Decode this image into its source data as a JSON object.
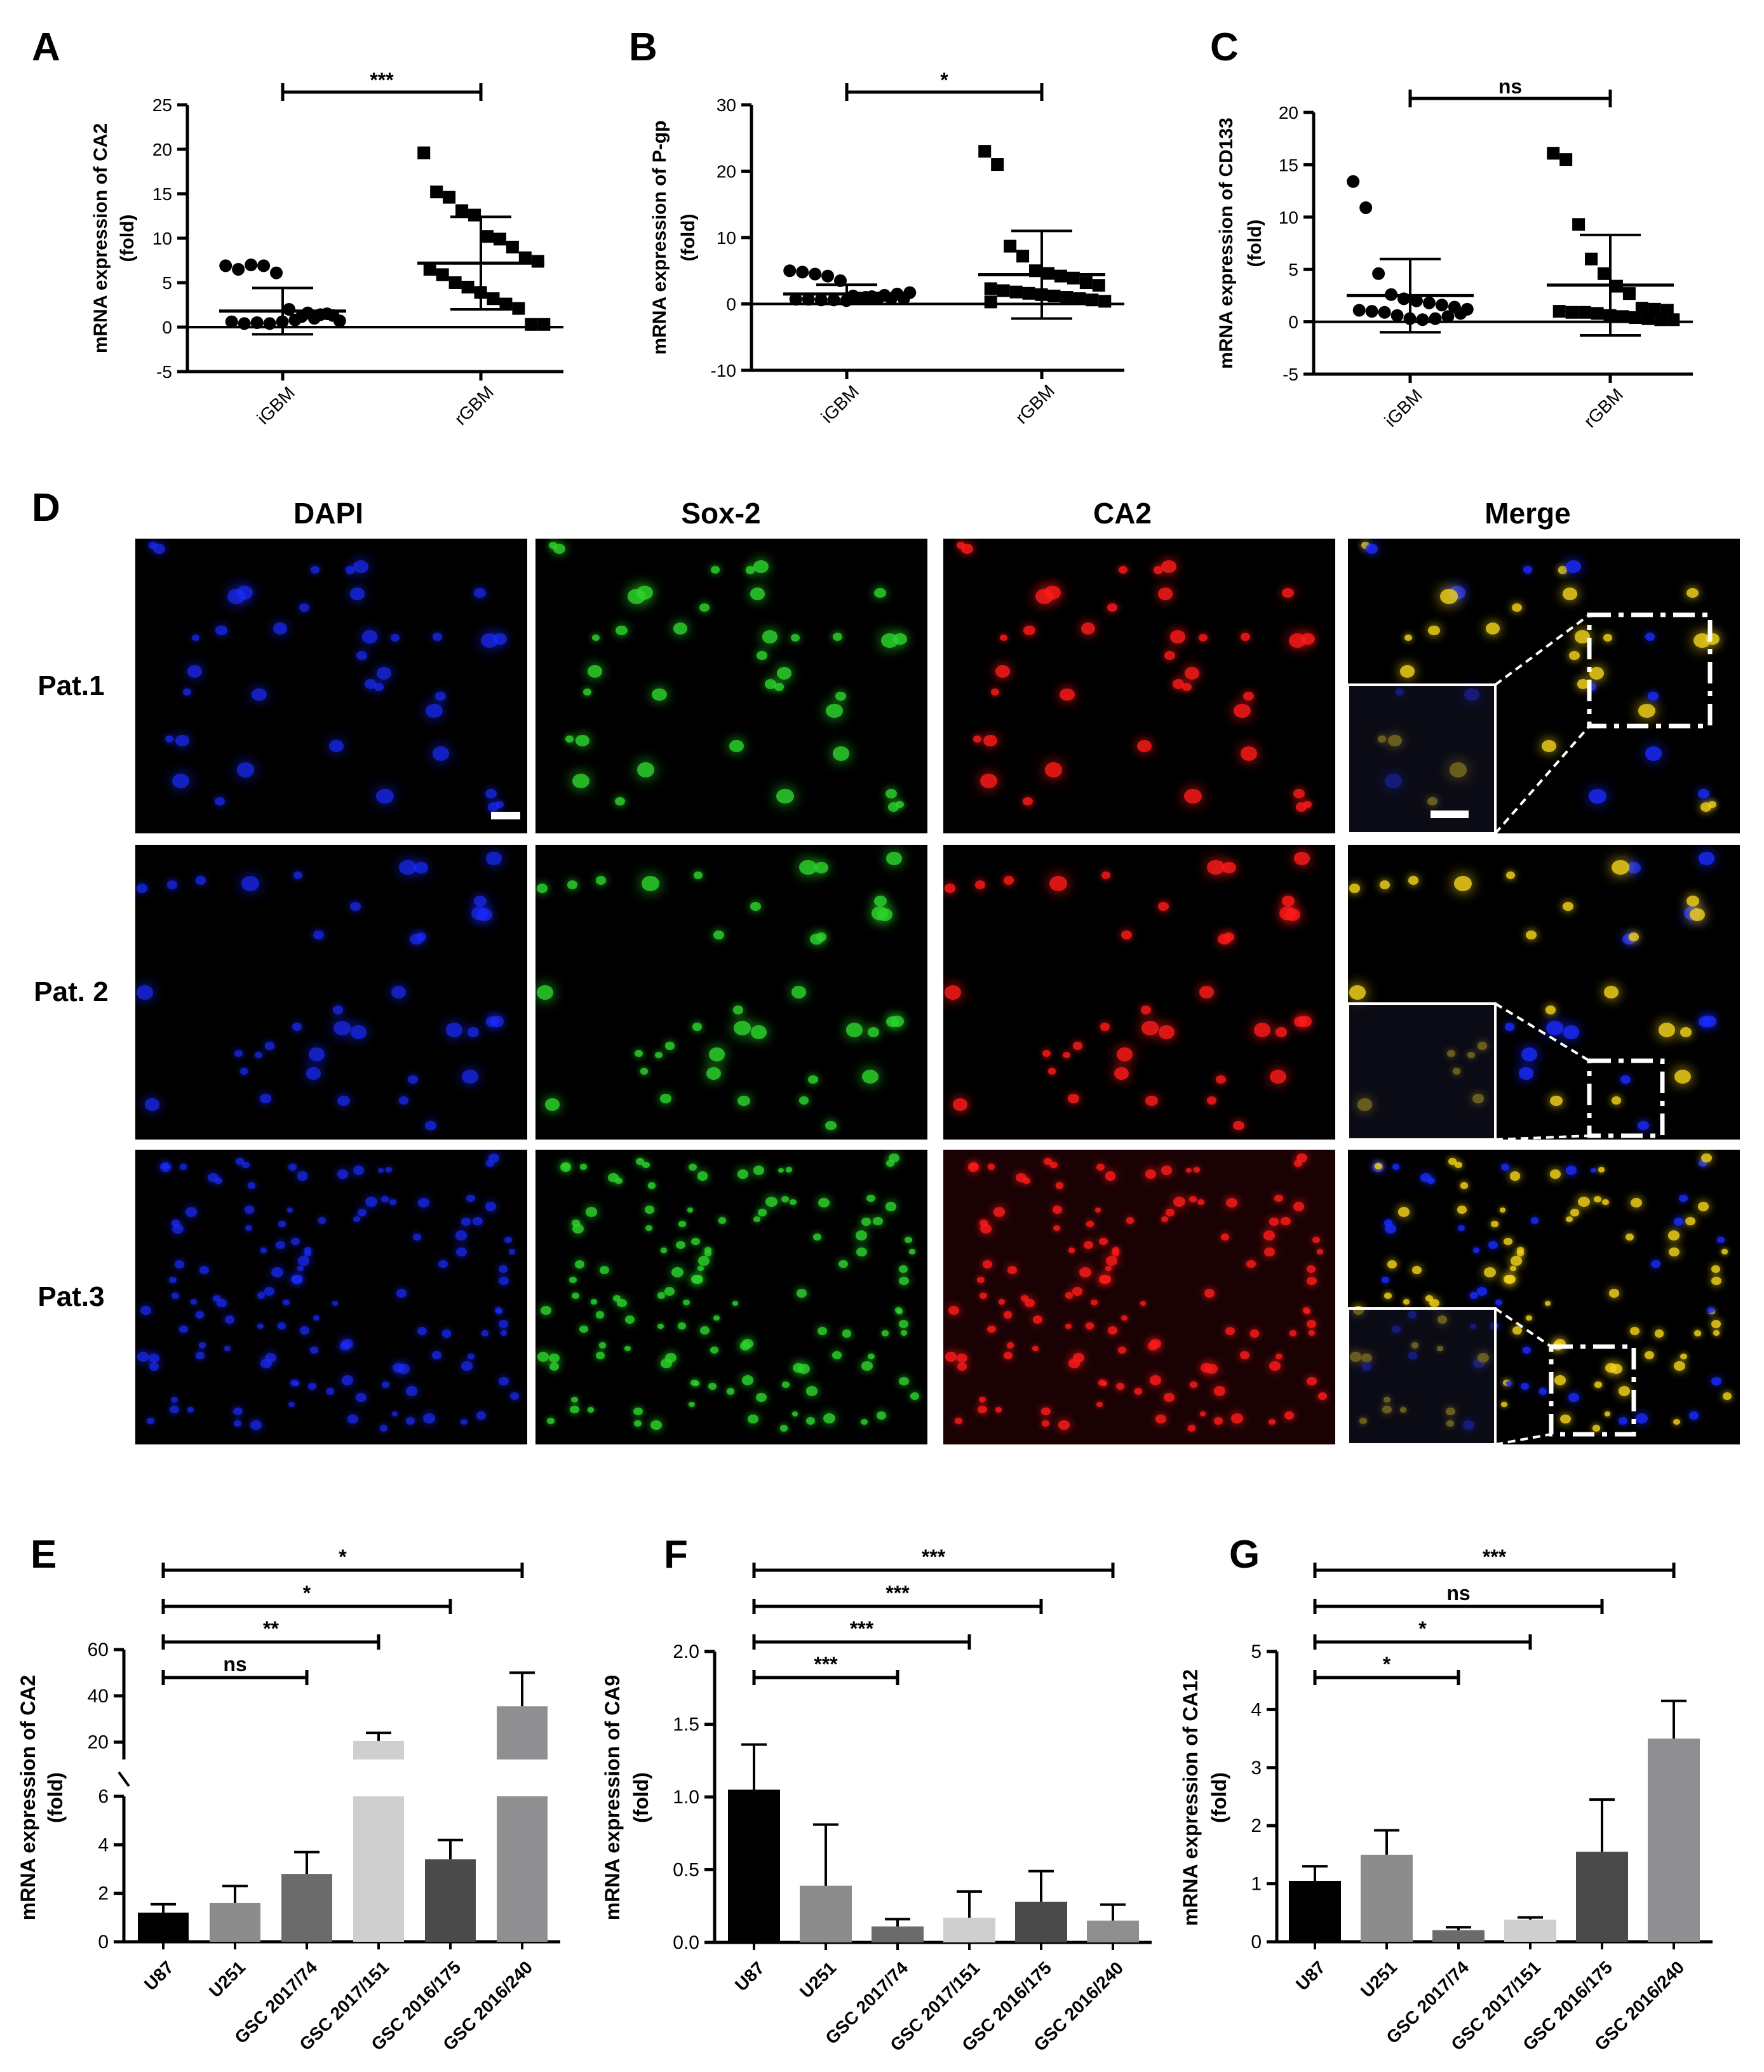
{
  "panels": {
    "A": {
      "letter": "A",
      "ylabel": "mRNA expression of CA2",
      "ylabel2": "(fold)",
      "yticks": [
        "-5",
        "0",
        "5",
        "10",
        "15",
        "20",
        "25"
      ],
      "categories": [
        "iGBM",
        "rGBM"
      ],
      "significance": "***"
    },
    "B": {
      "letter": "B",
      "ylabel": "mRNA expression of  P-gp",
      "ylabel2": "(fold)",
      "yticks": [
        "-10",
        "0",
        "10",
        "20",
        "30"
      ],
      "categories": [
        "iGBM",
        "rGBM"
      ],
      "significance": "*"
    },
    "C": {
      "letter": "C",
      "ylabel": "mRNA expression of  CD133",
      "ylabel2": "(fold)",
      "yticks": [
        "-5",
        "0",
        "5",
        "10",
        "15",
        "20"
      ],
      "categories": [
        "iGBM",
        "rGBM"
      ],
      "significance": "ns"
    },
    "D": {
      "letter": "D",
      "columns": [
        "DAPI",
        "Sox-2",
        "CA2",
        "Merge"
      ],
      "rows": [
        "Pat.1",
        "Pat. 2",
        "Pat.3"
      ]
    },
    "E": {
      "letter": "E",
      "ylabel": "mRNA expression of  CA2",
      "ylabel2": "(fold)",
      "yticks_low": [
        "0",
        "2",
        "4",
        "6"
      ],
      "yticks_high": [
        "20",
        "40",
        "60"
      ],
      "categories": [
        "U87",
        "U251",
        "GSC 2017/74",
        "GSC 2017/151",
        "GSC 2016/175",
        "GSC 2016/240"
      ],
      "brackets": [
        "*",
        "*",
        "**",
        "ns"
      ]
    },
    "F": {
      "letter": "F",
      "ylabel": "mRNA expression of  CA9",
      "ylabel2": "(fold)",
      "yticks": [
        "0.0",
        "0.5",
        "1.0",
        "1.5",
        "2.0"
      ],
      "categories": [
        "U87",
        "U251",
        "GSC 2017/74",
        "GSC 2017/151",
        "GSC 2016/175",
        "GSC 2016/240"
      ],
      "brackets": [
        "***",
        "***",
        "***",
        "***"
      ]
    },
    "G": {
      "letter": "G",
      "ylabel": "mRNA expression of  CA12",
      "ylabel2": "(fold)",
      "yticks": [
        "0",
        "1",
        "2",
        "3",
        "4",
        "5"
      ],
      "categories": [
        "U87",
        "U251",
        "GSC 2017/74",
        "GSC 2017/151",
        "GSC 2016/175",
        "GSC 2016/240"
      ],
      "brackets": [
        "***",
        "ns",
        "*",
        "*"
      ]
    }
  },
  "colors": {
    "axis": "#000000",
    "bars": [
      "#000000",
      "#8c8c8c",
      "#6b6b6b",
      "#cfcfcf",
      "#4a4a4a",
      "#8f8f92"
    ],
    "dapi": "#1a2bff",
    "sox2": "#2cd42c",
    "ca2": "#ff1a1a",
    "merge": "#f2d31a"
  },
  "chart_data": [
    {
      "panel": "A",
      "type": "scatter",
      "ylabel": "mRNA expression of CA2 (fold)",
      "ylim": [
        -5,
        25
      ],
      "categories": [
        "iGBM",
        "rGBM"
      ],
      "series": [
        {
          "category": "iGBM",
          "marker": "circle",
          "mean": 1.8,
          "sd": 2.6,
          "values": [
            6.9,
            6.5,
            7.0,
            6.9,
            6.1,
            2.0,
            1.2,
            1.0,
            1.5,
            0.7,
            0.6,
            0.4,
            0.5,
            0.4,
            0.6,
            0.8,
            1.6,
            1.4,
            1.3
          ]
        },
        {
          "category": "rGBM",
          "marker": "square",
          "mean": 7.2,
          "sd": 5.2,
          "values": [
            19.6,
            15.2,
            14.6,
            13.1,
            12.6,
            10.2,
            9.9,
            9.0,
            7.8,
            7.4,
            6.5,
            5.9,
            5.0,
            4.5,
            3.9,
            3.2,
            2.6,
            2.1,
            0.3,
            0.3
          ]
        }
      ],
      "comparison": {
        "groups": [
          "iGBM",
          "rGBM"
        ],
        "label": "***"
      }
    },
    {
      "panel": "B",
      "type": "scatter",
      "ylabel": "mRNA expression of P-gp (fold)",
      "ylim": [
        -10,
        30
      ],
      "categories": [
        "iGBM",
        "rGBM"
      ],
      "series": [
        {
          "category": "iGBM",
          "marker": "circle",
          "mean": 1.5,
          "sd": 1.4,
          "values": [
            5.0,
            4.8,
            4.5,
            4.2,
            3.5,
            1.2,
            1.0,
            0.9,
            0.8,
            0.8,
            0.7,
            0.7,
            0.6,
            0.6,
            0.5,
            0.9,
            1.1,
            1.3,
            1.5,
            1.7
          ]
        },
        {
          "category": "rGBM",
          "marker": "square",
          "mean": 4.4,
          "sd": 6.6,
          "values": [
            23.0,
            21.0,
            8.7,
            7.2,
            5.0,
            4.6,
            4.2,
            3.9,
            3.2,
            2.8,
            2.3,
            2.0,
            1.8,
            1.6,
            1.4,
            1.2,
            1.0,
            0.8,
            0.6,
            0.4,
            0.3
          ]
        }
      ],
      "comparison": {
        "groups": [
          "iGBM",
          "rGBM"
        ],
        "label": "*"
      }
    },
    {
      "panel": "C",
      "type": "scatter",
      "ylabel": "mRNA expression of CD133 (fold)",
      "ylim": [
        -5,
        20
      ],
      "categories": [
        "iGBM",
        "rGBM"
      ],
      "series": [
        {
          "category": "iGBM",
          "marker": "circle",
          "mean": 2.5,
          "sd": 3.5,
          "values": [
            13.4,
            10.9,
            4.6,
            2.6,
            2.2,
            2.0,
            1.8,
            1.6,
            1.4,
            1.2,
            1.1,
            1.0,
            0.9,
            0.6,
            0.3,
            0.2,
            0.3,
            0.5,
            0.8
          ]
        },
        {
          "category": "rGBM",
          "marker": "square",
          "mean": 3.5,
          "sd": 4.8,
          "values": [
            16.1,
            15.5,
            9.3,
            6.0,
            4.6,
            3.4,
            2.7,
            1.3,
            1.2,
            1.1,
            1.0,
            0.9,
            0.9,
            0.8,
            0.6,
            0.5,
            0.4,
            0.3,
            0.2,
            0.2
          ]
        }
      ],
      "comparison": {
        "groups": [
          "iGBM",
          "rGBM"
        ],
        "label": "ns"
      }
    },
    {
      "panel": "E",
      "type": "bar",
      "ylabel": "mRNA expression of CA2 (fold)",
      "ylim": [
        0,
        60
      ],
      "y_axis_break": [
        6,
        18
      ],
      "categories": [
        "U87",
        "U251",
        "GSC 2017/74",
        "GSC 2017/151",
        "GSC 2016/175",
        "GSC 2016/240"
      ],
      "values": [
        1.2,
        1.6,
        2.8,
        20.5,
        3.4,
        35.5
      ],
      "errors": [
        0.35,
        0.7,
        0.9,
        3.5,
        0.8,
        14.5
      ],
      "comparisons": [
        {
          "groups": [
            "U87",
            "GSC 2016/240"
          ],
          "label": "*"
        },
        {
          "groups": [
            "U87",
            "GSC 2016/175"
          ],
          "label": "*"
        },
        {
          "groups": [
            "U87",
            "GSC 2017/151"
          ],
          "label": "**"
        },
        {
          "groups": [
            "U87",
            "GSC 2017/74"
          ],
          "label": "ns"
        }
      ]
    },
    {
      "panel": "F",
      "type": "bar",
      "ylabel": "mRNA expression of CA9 (fold)",
      "ylim": [
        0,
        2.0
      ],
      "categories": [
        "U87",
        "U251",
        "GSC 2017/74",
        "GSC 2017/151",
        "GSC 2016/175",
        "GSC 2016/240"
      ],
      "values": [
        1.05,
        0.39,
        0.11,
        0.17,
        0.28,
        0.15
      ],
      "errors": [
        0.31,
        0.42,
        0.05,
        0.18,
        0.21,
        0.11
      ],
      "comparisons": [
        {
          "groups": [
            "U87",
            "GSC 2016/240"
          ],
          "label": "***"
        },
        {
          "groups": [
            "U87",
            "GSC 2016/175"
          ],
          "label": "***"
        },
        {
          "groups": [
            "U87",
            "GSC 2017/151"
          ],
          "label": "***"
        },
        {
          "groups": [
            "U87",
            "GSC 2017/74"
          ],
          "label": "***"
        }
      ]
    },
    {
      "panel": "G",
      "type": "bar",
      "ylabel": "mRNA expression of CA12 (fold)",
      "ylim": [
        0,
        5
      ],
      "categories": [
        "U87",
        "U251",
        "GSC 2017/74",
        "GSC 2017/151",
        "GSC 2016/175",
        "GSC 2016/240"
      ],
      "values": [
        1.05,
        1.5,
        0.2,
        0.38,
        1.55,
        3.5
      ],
      "errors": [
        0.25,
        0.42,
        0.05,
        0.04,
        0.9,
        0.65
      ],
      "comparisons": [
        {
          "groups": [
            "U87",
            "GSC 2016/240"
          ],
          "label": "***"
        },
        {
          "groups": [
            "U87",
            "GSC 2016/175"
          ],
          "label": "ns"
        },
        {
          "groups": [
            "U87",
            "GSC 2017/151"
          ],
          "label": "*"
        },
        {
          "groups": [
            "U87",
            "GSC 2017/74"
          ],
          "label": "*"
        }
      ]
    }
  ]
}
